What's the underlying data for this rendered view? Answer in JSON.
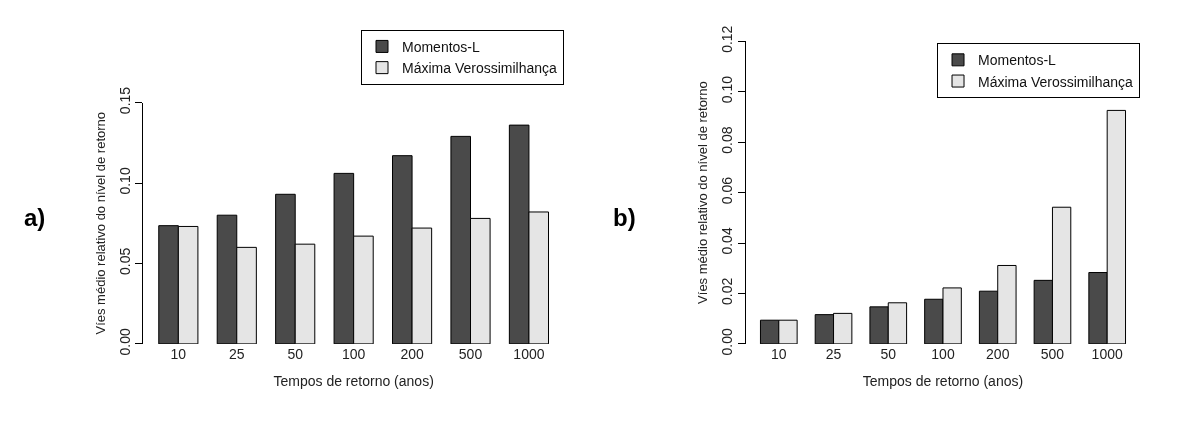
{
  "chart_data": [
    {
      "type": "bar",
      "annotations": [
        "a)"
      ],
      "xlabel": "Tempos de retorno (anos)",
      "ylabel": "Víes médio relativo do nível de retorno",
      "categories": [
        "10",
        "25",
        "50",
        "100",
        "200",
        "500",
        "1000"
      ],
      "series": [
        {
          "name": "Momentos-L",
          "color": "#4a4a4a",
          "values": [
            0.0735,
            0.08,
            0.093,
            0.106,
            0.117,
            0.129,
            0.136
          ]
        },
        {
          "name": "Máxima Verossimilhança",
          "color": "#e5e5e5",
          "values": [
            0.073,
            0.06,
            0.062,
            0.067,
            0.072,
            0.078,
            0.082
          ]
        }
      ],
      "ylim": [
        0,
        0.15
      ],
      "yticks": [
        {
          "value": 0,
          "label": "0.00"
        },
        {
          "value": 0.05,
          "label": "0.05"
        },
        {
          "value": 0.1,
          "label": "0.10"
        },
        {
          "value": 0.15,
          "label": "0.15"
        }
      ],
      "legend": "top right"
    },
    {
      "type": "bar",
      "annotations": [
        "b)"
      ],
      "xlabel": "Tempos de retorno (anos)",
      "ylabel": "Víes médio relativo do nível de retorno",
      "categories": [
        "10",
        "25",
        "50",
        "100",
        "200",
        "500",
        "1000"
      ],
      "series": [
        {
          "name": "Momentos-L",
          "color": "#4a4a4a",
          "values": [
            0.0094,
            0.0116,
            0.0147,
            0.0177,
            0.0209,
            0.0252,
            0.0283
          ]
        },
        {
          "name": "Máxima Verossimilhança",
          "color": "#e5e5e5",
          "values": [
            0.0094,
            0.0121,
            0.0163,
            0.0222,
            0.0311,
            0.0542,
            0.0926
          ]
        }
      ],
      "ylim": [
        0,
        0.12
      ],
      "yticks": [
        {
          "value": 0,
          "label": "0.00"
        },
        {
          "value": 0.02,
          "label": "0.02"
        },
        {
          "value": 0.04,
          "label": "0.04"
        },
        {
          "value": 0.06,
          "label": "0.06"
        },
        {
          "value": 0.08,
          "label": "0.08"
        },
        {
          "value": 0.1,
          "label": "0.10"
        },
        {
          "value": 0.12,
          "label": "0.12"
        }
      ],
      "legend": "top right"
    }
  ]
}
